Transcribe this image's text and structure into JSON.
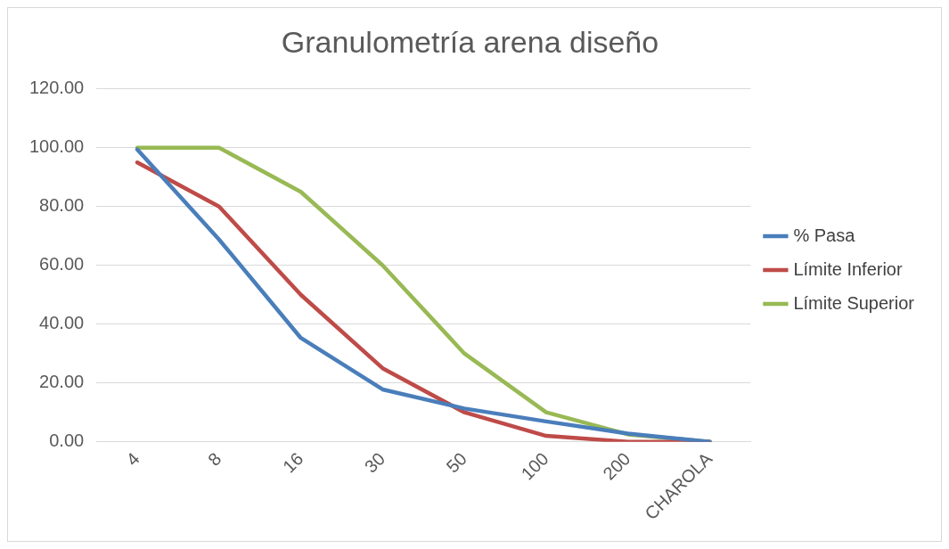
{
  "chart_data": {
    "type": "line",
    "title": "Granulometría arena diseño",
    "categories": [
      "4",
      "8",
      "16",
      "30",
      "50",
      "100",
      "200",
      "CHAROLA"
    ],
    "series": [
      {
        "name": "% Pasa",
        "color": "#4a7ebb",
        "values": [
          99.4,
          68.8,
          35.3,
          17.8,
          11.3,
          6.9,
          2.8,
          0
        ]
      },
      {
        "name": "Límite Inferior",
        "color": "#be4b48",
        "values": [
          95,
          80,
          50,
          25,
          10,
          2,
          0,
          0
        ]
      },
      {
        "name": "Límite Superior",
        "color": "#98b954",
        "values": [
          100,
          100,
          85,
          60,
          30,
          10,
          2.5,
          0
        ]
      }
    ],
    "ylim": [
      0,
      120
    ],
    "yticks": [
      {
        "value": 0,
        "label": "0.00"
      },
      {
        "value": 20,
        "label": "20.00"
      },
      {
        "value": 40,
        "label": "40.00"
      },
      {
        "value": 60,
        "label": "60.00"
      },
      {
        "value": 80,
        "label": "80.00"
      },
      {
        "value": 100,
        "label": "100.00"
      },
      {
        "value": 120,
        "label": "120.00"
      }
    ],
    "grid": "y",
    "legend": "right",
    "marker": "none",
    "line_style": "solid"
  }
}
